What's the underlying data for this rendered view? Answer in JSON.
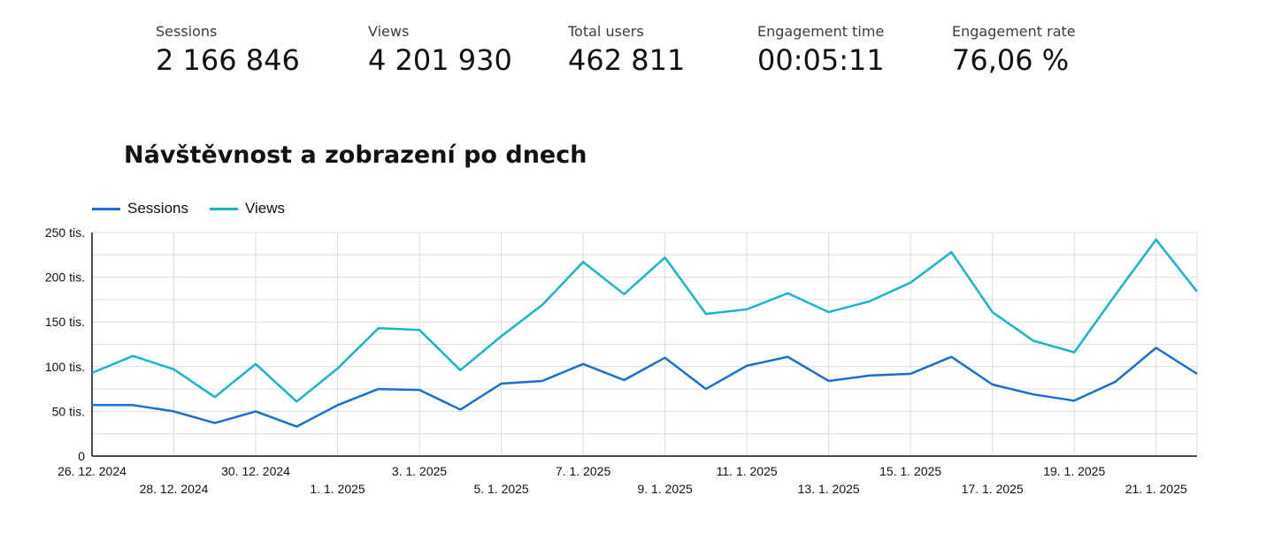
{
  "kpis": [
    {
      "label": "Sessions",
      "value": "2 166 846"
    },
    {
      "label": "Views",
      "value": "4 201 930"
    },
    {
      "label": "Total users",
      "value": "462 811"
    },
    {
      "label": "Engagement time",
      "value": "00:05:11"
    },
    {
      "label": "Engagement rate",
      "value": "76,06 %"
    }
  ],
  "chart_data": {
    "type": "line",
    "title": "Návštěvnost a zobrazení po dnech",
    "xlabel": "",
    "ylabel": "",
    "x": [
      "26. 12. 2024",
      "27. 12. 2024",
      "28. 12. 2024",
      "29. 12. 2024",
      "30. 12. 2024",
      "31. 12. 2024",
      "1. 1. 2025",
      "2. 1. 2025",
      "3. 1. 2025",
      "4. 1. 2025",
      "5. 1. 2025",
      "6. 1. 2025",
      "7. 1. 2025",
      "8. 1. 2025",
      "9. 1. 2025",
      "10. 1. 2025",
      "11. 1. 2025",
      "12. 1. 2025",
      "13. 1. 2025",
      "14. 1. 2025",
      "15. 1. 2025",
      "16. 1. 2025",
      "17. 1. 2025",
      "18. 1. 2025",
      "19. 1. 2025",
      "20. 1. 2025",
      "21. 1. 2025",
      "22. 1. 2025"
    ],
    "x_tick_labels": [
      "26. 12. 2024",
      "28. 12. 2024",
      "30. 12. 2024",
      "1. 1. 2025",
      "3. 1. 2025",
      "5. 1. 2025",
      "7. 1. 2025",
      "9. 1. 2025",
      "11. 1. 2025",
      "13. 1. 2025",
      "15. 1. 2025",
      "17. 1. 2025",
      "19. 1. 2025",
      "21. 1. 2025"
    ],
    "y_tick_labels": [
      "0",
      "50 tis.",
      "100 tis.",
      "150 tis.",
      "200 tis.",
      "250 tis."
    ],
    "ylim": [
      0,
      250000
    ],
    "grid": true,
    "legend_position": "top-left",
    "series": [
      {
        "name": "Sessions",
        "color": "#1a6fd0",
        "values": [
          57000,
          57000,
          50000,
          37000,
          50000,
          33000,
          57000,
          75000,
          74000,
          52000,
          81000,
          84000,
          103000,
          85000,
          110000,
          75000,
          101000,
          111000,
          84000,
          90000,
          92000,
          111000,
          80000,
          69000,
          62000,
          83000,
          121000,
          92000
        ]
      },
      {
        "name": "Views",
        "color": "#18b4c8",
        "values": [
          93000,
          112000,
          97000,
          66000,
          103000,
          61000,
          98000,
          143000,
          141000,
          96000,
          134000,
          169000,
          217000,
          181000,
          222000,
          159000,
          164000,
          182000,
          161000,
          173000,
          194000,
          228000,
          161000,
          129000,
          116000,
          180000,
          242000,
          184000
        ]
      }
    ]
  }
}
